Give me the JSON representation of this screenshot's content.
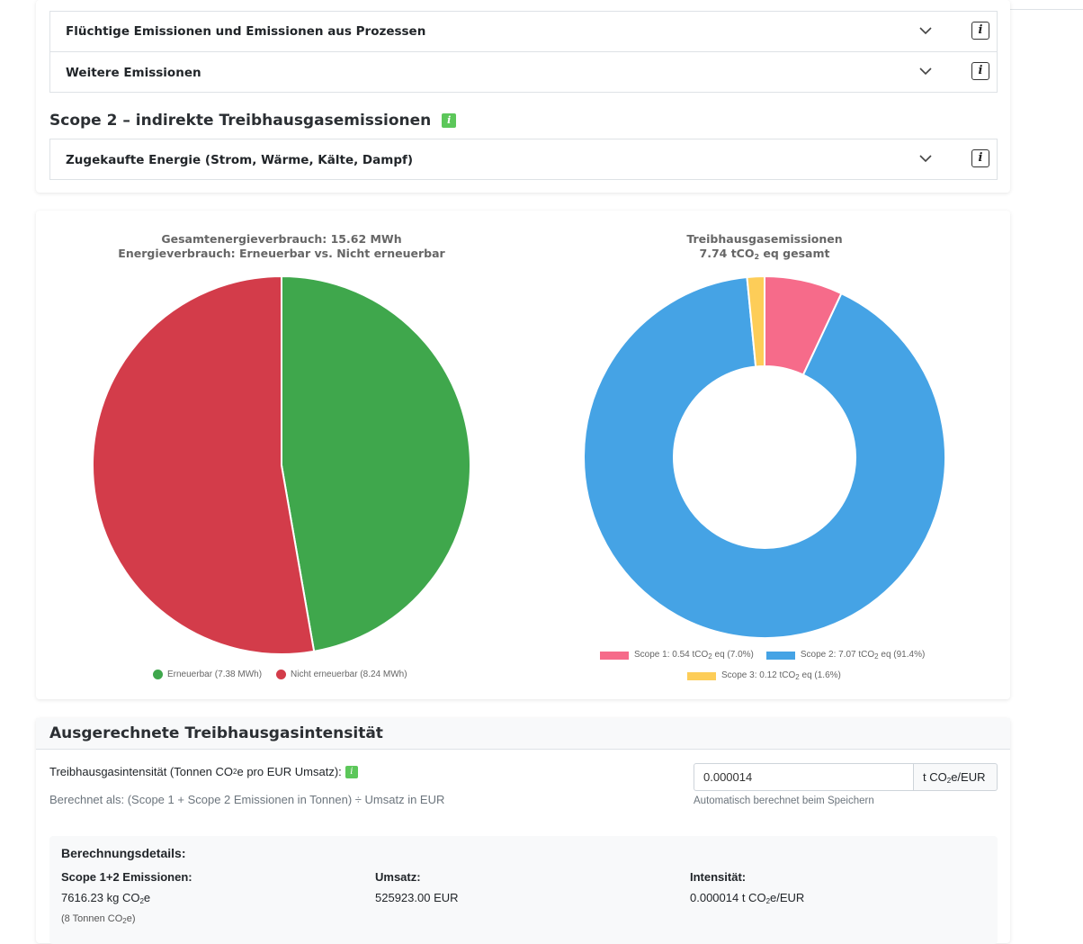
{
  "scope1_items": {
    "fugitive": "Flüchtige Emissionen und Emissionen aus Prozessen",
    "other": "Weitere Emissionen"
  },
  "scope2": {
    "heading": "Scope 2 – indirekte Treibhausgasemissionen",
    "purchased_energy": "Zugekaufte Energie (Strom, Wärme, Kälte, Dampf)"
  },
  "info_glyph": "i",
  "energy_chart": {
    "title_line1": "Gesamtenergieverbrauch: 15.62 MWh",
    "title_line2": "Energieverbrauch: Erneuerbar vs. Nicht erneuerbar",
    "legend": [
      {
        "label": "Erneuerbar (7.38 MWh)",
        "color": "#3fa74c"
      },
      {
        "label": "Nicht erneuerbar (8.24 MWh)",
        "color": "#d33c4a"
      }
    ]
  },
  "ghg_chart": {
    "title_line1": "Treibhausgasemissionen",
    "title_line2_pre": "7.74 tCO",
    "title_line2_sub": "2",
    "title_line2_post": " eq gesamt",
    "legend": [
      {
        "pre": "Scope 1: 0.54 tCO",
        "sub": "2",
        "post": " eq (7.0%)",
        "color": "#f66b8a"
      },
      {
        "pre": "Scope 2: 7.07 tCO",
        "sub": "2",
        "post": " eq (91.4%)",
        "color": "#45a3e5"
      },
      {
        "pre": "Scope 3: 0.12 tCO",
        "sub": "2",
        "post": " eq (1.6%)",
        "color": "#fdcd58"
      }
    ]
  },
  "chart_data": [
    {
      "type": "pie",
      "title": "Gesamtenergieverbrauch: 15.62 MWh — Energieverbrauch: Erneuerbar vs. Nicht erneuerbar",
      "categories": [
        "Erneuerbar",
        "Nicht erneuerbar"
      ],
      "values": [
        7.38,
        8.24
      ],
      "unit": "MWh",
      "colors": [
        "#3fa74c",
        "#d33c4a"
      ],
      "legend_position": "bottom"
    },
    {
      "type": "pie",
      "variant": "doughnut",
      "title": "Treibhausgasemissionen — 7.74 tCO2 eq gesamt",
      "categories": [
        "Scope 1",
        "Scope 2",
        "Scope 3"
      ],
      "values": [
        0.54,
        7.07,
        0.12
      ],
      "percentages": [
        7.0,
        91.4,
        1.6
      ],
      "unit": "tCO2 eq",
      "colors": [
        "#f66b8a",
        "#45a3e5",
        "#fdcd58"
      ],
      "legend_position": "bottom"
    }
  ],
  "intensity": {
    "section_title": "Ausgerechnete Treibhausgasintensität",
    "label_pre": "Treibhausgasintensität (Tonnen CO",
    "label_sub": "2",
    "label_post": "e pro EUR Umsatz):",
    "formula": "Berechnet als: (Scope 1 + Scope 2 Emissionen in Tonnen) ÷ Umsatz in EUR",
    "value": "0.000014",
    "unit_pre": "t CO",
    "unit_sub": "2",
    "unit_post": "e/EUR",
    "hint": "Automatisch berechnet beim Speichern"
  },
  "details": {
    "heading": "Berechnungsdetails:",
    "emissions_label": "Scope 1+2 Emissionen:",
    "emissions_value_pre": "7616.23 kg CO",
    "emissions_value_sub": "2",
    "emissions_value_post": "e",
    "emissions_note_pre": "(8 Tonnen CO",
    "emissions_note_sub": "2",
    "emissions_note_post": "e)",
    "revenue_label": "Umsatz:",
    "revenue_value": "525923.00 EUR",
    "intensity_label": "Intensität:",
    "intensity_value_pre": "0.000014 t CO",
    "intensity_value_sub": "2",
    "intensity_value_post": "e/EUR"
  }
}
